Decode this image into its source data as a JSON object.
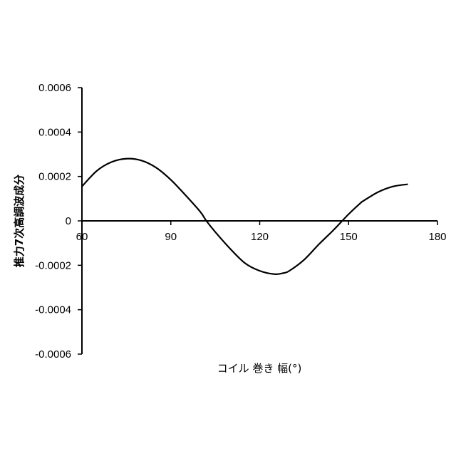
{
  "chart_data": {
    "type": "line",
    "xlabel": "コイル 巻き 幅(°)",
    "ylabel": "推力7次高調波成分",
    "xlim": [
      60,
      180
    ],
    "ylim": [
      -0.0006,
      0.0006
    ],
    "x_ticks": [
      "60",
      "90",
      "120",
      "150",
      "180"
    ],
    "y_ticks": [
      "0.0006",
      "0.0004",
      "0.0002",
      "0",
      "-0.0002",
      "-0.0004",
      "-0.0006"
    ],
    "grid": false,
    "legend": "none",
    "series": [
      {
        "color": "#000000",
        "x": [
          60,
          65,
          70,
          75,
          80,
          85,
          90,
          95,
          100,
          102,
          105,
          110,
          115,
          120,
          125,
          128,
          130,
          135,
          140,
          145,
          150,
          154,
          155,
          160,
          165,
          170
        ],
        "values": [
          0.000155,
          0.000225,
          0.000265,
          0.00028,
          0.000272,
          0.00024,
          0.000185,
          0.000115,
          4e-05,
          0.0,
          -5e-05,
          -0.000125,
          -0.00019,
          -0.000225,
          -0.00024,
          -0.000235,
          -0.000225,
          -0.000175,
          -0.000105,
          -4e-05,
          3e-05,
          8e-05,
          9e-05,
          0.00013,
          0.000155,
          0.000165
        ]
      }
    ]
  }
}
